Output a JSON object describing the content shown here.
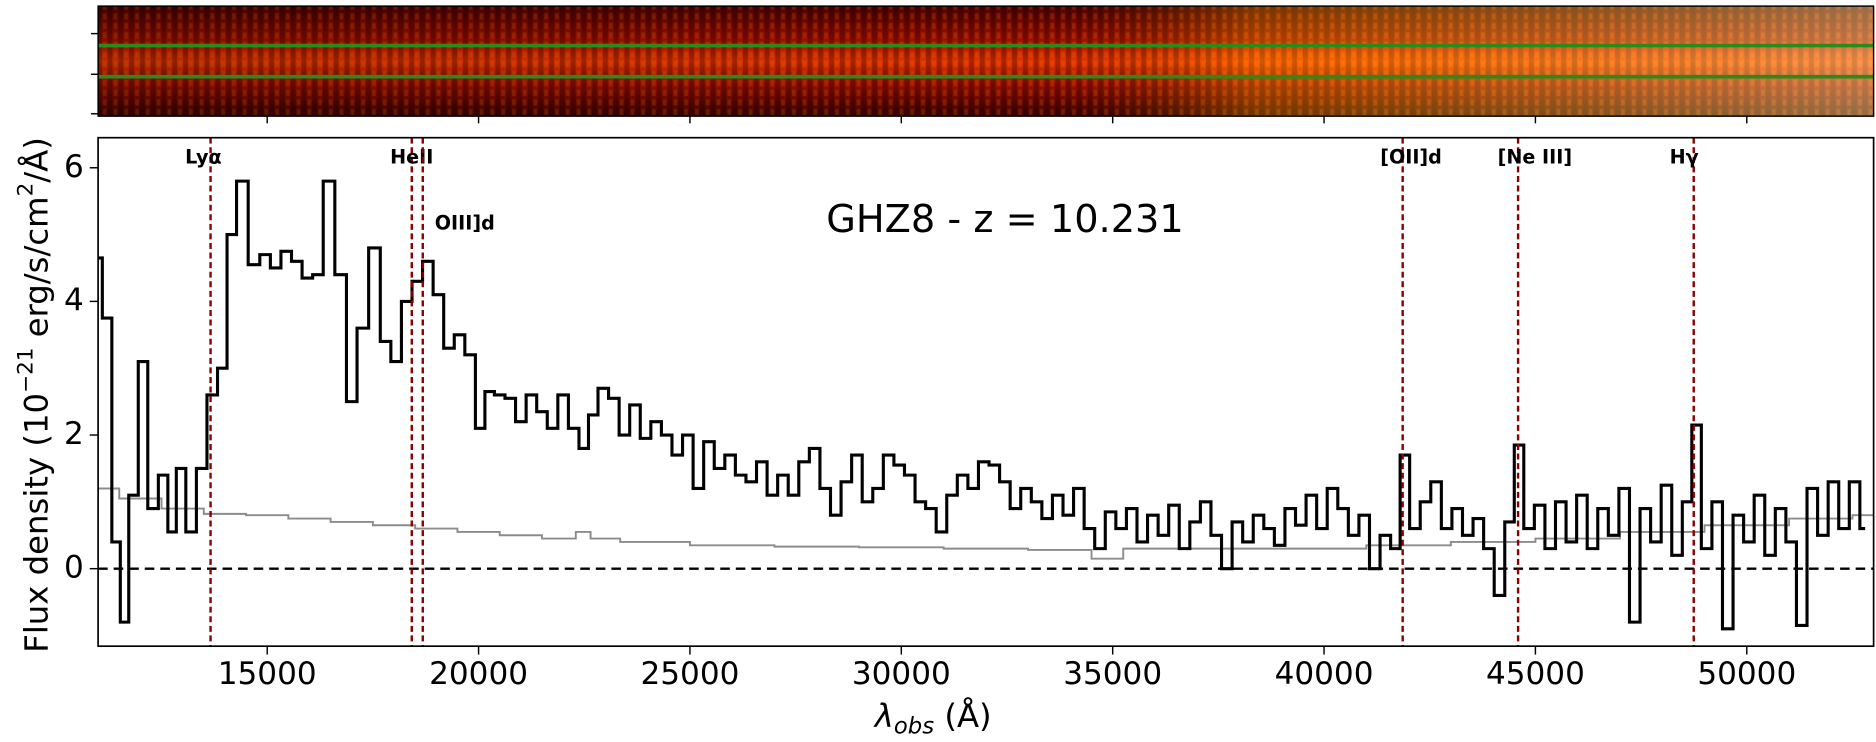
{
  "chart_data": {
    "type": "step",
    "title": "GHZ8 - z = 10.231",
    "xlabel": [
      "λ",
      "obs",
      " (Å)"
    ],
    "ylabel": [
      "Flux density (10",
      "−21",
      " erg/s/cm",
      "2",
      "/Å)"
    ],
    "xlim": [
      11000,
      53000
    ],
    "ylim": [
      -1.16,
      6.45
    ],
    "xticks": [
      {
        "value": 15000,
        "label": "15000"
      },
      {
        "value": 20000,
        "label": "20000"
      },
      {
        "value": 25000,
        "label": "25000"
      },
      {
        "value": 30000,
        "label": "30000"
      },
      {
        "value": 35000,
        "label": "35000"
      },
      {
        "value": 40000,
        "label": "40000"
      },
      {
        "value": 45000,
        "label": "45000"
      },
      {
        "value": 50000,
        "label": "50000"
      }
    ],
    "yticks": [
      0,
      2,
      4,
      6
    ],
    "reference_line": 0,
    "series": [
      {
        "color": "#000000",
        "width": 2.6,
        "x": [
          11000,
          11200,
          11450,
          11600,
          11850,
          12050,
          12300,
          12550,
          12750,
          12950,
          13200,
          13450,
          13700,
          13950,
          14150,
          14400,
          14700,
          14950,
          15200,
          15450,
          15700,
          15950,
          16200,
          16450,
          16750,
          17000,
          17250,
          17550,
          17800,
          18050,
          18300,
          18550,
          18800,
          19050,
          19300,
          19550,
          19800,
          20050,
          20250,
          20500,
          20750,
          21000,
          21250,
          21500,
          21750,
          22000,
          22250,
          22500,
          22700,
          22950,
          23200,
          23450,
          23700,
          23950,
          24200,
          24450,
          24700,
          24950,
          25200,
          25450,
          25700,
          25950,
          26200,
          26450,
          26700,
          26950,
          27200,
          27450,
          27700,
          27950,
          28200,
          28450,
          28700,
          28950,
          29200,
          29450,
          29700,
          29950,
          30200,
          30450,
          30700,
          30950,
          31200,
          31450,
          31700,
          31950,
          32200,
          32450,
          32700,
          32950,
          33200,
          33450,
          33700,
          33950,
          34200,
          34450,
          34700,
          34950,
          35200,
          35450,
          35700,
          35950,
          36200,
          36450,
          36700,
          36950,
          37200,
          37450,
          37700,
          37950,
          38200,
          38450,
          38700,
          38950,
          39200,
          39450,
          39700,
          39950,
          40200,
          40450,
          40700,
          40950,
          41200,
          41450,
          41700,
          41900,
          42150,
          42400,
          42650,
          42900,
          43150,
          43400,
          43650,
          43900,
          44150,
          44400,
          44600,
          44850,
          45100,
          45350,
          45600,
          45850,
          46100,
          46350,
          46600,
          46850,
          47100,
          47350,
          47600,
          47850,
          48100,
          48350,
          48600,
          48800,
          49050,
          49300,
          49550,
          49800,
          50050,
          50300,
          50550,
          50800,
          51050,
          51300,
          51550,
          51800,
          52050,
          52300,
          52550,
          52800
        ],
        "values": [
          4.65,
          3.75,
          0.4,
          -0.8,
          1.1,
          3.1,
          0.9,
          1.4,
          0.55,
          1.5,
          0.55,
          1.5,
          2.6,
          3.0,
          5.0,
          5.8,
          4.55,
          4.7,
          4.5,
          4.75,
          4.6,
          4.35,
          4.4,
          5.8,
          4.4,
          2.5,
          3.6,
          4.8,
          3.4,
          3.1,
          4.0,
          4.3,
          4.6,
          4.1,
          3.3,
          3.5,
          3.2,
          2.1,
          2.65,
          2.6,
          2.55,
          2.2,
          2.6,
          2.35,
          2.1,
          2.6,
          2.1,
          1.8,
          2.3,
          2.7,
          2.55,
          2.0,
          2.45,
          1.95,
          2.2,
          2.0,
          1.7,
          2.0,
          1.2,
          1.9,
          1.5,
          1.7,
          1.4,
          1.3,
          1.6,
          1.1,
          1.4,
          1.1,
          1.6,
          1.8,
          1.2,
          0.8,
          1.3,
          1.7,
          1.0,
          1.2,
          1.7,
          1.55,
          1.4,
          1.0,
          0.9,
          0.55,
          1.1,
          1.4,
          1.2,
          1.6,
          1.55,
          1.3,
          0.9,
          1.2,
          1.0,
          0.75,
          1.1,
          0.8,
          1.2,
          0.6,
          0.3,
          0.85,
          0.6,
          0.9,
          0.4,
          0.8,
          0.5,
          0.95,
          0.3,
          0.7,
          1.0,
          0.5,
          0.0,
          0.7,
          0.4,
          0.8,
          0.6,
          0.35,
          0.9,
          0.65,
          1.1,
          0.6,
          1.2,
          0.9,
          0.5,
          0.8,
          0.0,
          0.5,
          0.3,
          1.7,
          0.6,
          1.0,
          1.3,
          0.6,
          0.9,
          0.5,
          0.75,
          0.3,
          -0.4,
          0.7,
          1.85,
          0.6,
          0.95,
          0.3,
          1.0,
          0.4,
          1.1,
          0.3,
          0.9,
          0.5,
          1.2,
          -0.8,
          0.9,
          0.4,
          1.25,
          0.2,
          1.0,
          2.15,
          0.3,
          1.0,
          -0.9,
          0.8,
          0.4,
          1.1,
          0.2,
          0.9,
          0.4,
          -0.85,
          1.2,
          0.5,
          1.3,
          0.6,
          1.3,
          0.6
        ]
      },
      {
        "color": "#8c8c8c",
        "width": 1.6,
        "x": [
          11000,
          12000,
          13000,
          14000,
          15000,
          16000,
          17000,
          18000,
          19000,
          20000,
          21000,
          22000,
          22600,
          22700,
          24000,
          26000,
          28000,
          30000,
          32000,
          34000,
          35000,
          35500,
          38000,
          40000,
          42000,
          44000,
          46000,
          48000,
          50000,
          52000,
          53000
        ],
        "values": [
          1.2,
          1.05,
          0.9,
          0.82,
          0.8,
          0.75,
          0.7,
          0.65,
          0.6,
          0.55,
          0.5,
          0.45,
          0.55,
          0.45,
          0.4,
          0.35,
          0.33,
          0.32,
          0.3,
          0.28,
          0.15,
          0.3,
          0.3,
          0.3,
          0.35,
          0.4,
          0.45,
          0.55,
          0.65,
          0.75,
          0.8
        ]
      }
    ],
    "lines": [
      {
        "label": "Lyα",
        "x": 13660
      },
      {
        "label": "HeII",
        "x": 18420
      },
      {
        "label": "OIII]d",
        "x": 18680
      },
      {
        "label": "[OII]d",
        "x": 41860
      },
      {
        "label": "[Ne III]",
        "x": 44590
      },
      {
        "label": "Hγ",
        "x": 48745
      }
    ],
    "line_color": "#8b0000",
    "line_label_color": "#1f1fd6"
  }
}
